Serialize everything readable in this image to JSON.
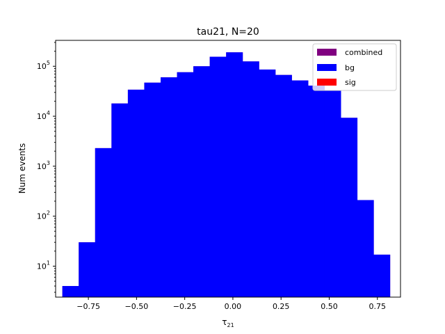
{
  "chart_data": {
    "type": "bar",
    "title": "tau21, N=20",
    "xlabel_main": "τ",
    "xlabel_sub": "21",
    "ylabel": "Num events",
    "yscale": "log",
    "ylim": [
      2.4,
      330000
    ],
    "xlim": [
      -0.92,
      0.87
    ],
    "bin_edges": [
      -0.885,
      -0.8,
      -0.715,
      -0.63,
      -0.545,
      -0.46,
      -0.375,
      -0.29,
      -0.205,
      -0.12,
      -0.035,
      0.05,
      0.135,
      0.22,
      0.305,
      0.39,
      0.475,
      0.56,
      0.645,
      0.73,
      0.815
    ],
    "series": [
      {
        "name": "combined",
        "color": "#800080",
        "values": [
          4,
          30,
          2300,
          18000,
          34000,
          47000,
          60000,
          76000,
          100000,
          155000,
          190000,
          125000,
          86000,
          67000,
          52000,
          41000,
          33000,
          9300,
          210,
          17
        ]
      },
      {
        "name": "bg",
        "color": "#0000ff",
        "values": [
          4,
          30,
          2300,
          18000,
          34000,
          47000,
          60000,
          76000,
          100000,
          155000,
          190000,
          125000,
          86000,
          67000,
          52000,
          41000,
          33000,
          9300,
          210,
          17
        ]
      },
      {
        "name": "sig",
        "color": "#ff0000",
        "values": [
          0,
          0,
          0,
          0,
          0,
          0,
          0,
          0,
          0,
          0,
          0,
          0,
          0,
          0,
          0,
          0,
          0,
          0,
          0,
          0
        ]
      }
    ],
    "xticks": [
      "−0.75",
      "−0.50",
      "−0.25",
      "0.00",
      "0.25",
      "0.50",
      "0.75"
    ],
    "xtick_values": [
      -0.75,
      -0.5,
      -0.25,
      0.0,
      0.25,
      0.5,
      0.75
    ],
    "yticks": [
      {
        "value": 10,
        "base": "10",
        "exp": "1"
      },
      {
        "value": 100,
        "base": "10",
        "exp": "2"
      },
      {
        "value": 1000,
        "base": "10",
        "exp": "3"
      },
      {
        "value": 10000,
        "base": "10",
        "exp": "4"
      },
      {
        "value": 100000,
        "base": "10",
        "exp": "5"
      }
    ],
    "legend_position": "top-right",
    "grid": false
  }
}
